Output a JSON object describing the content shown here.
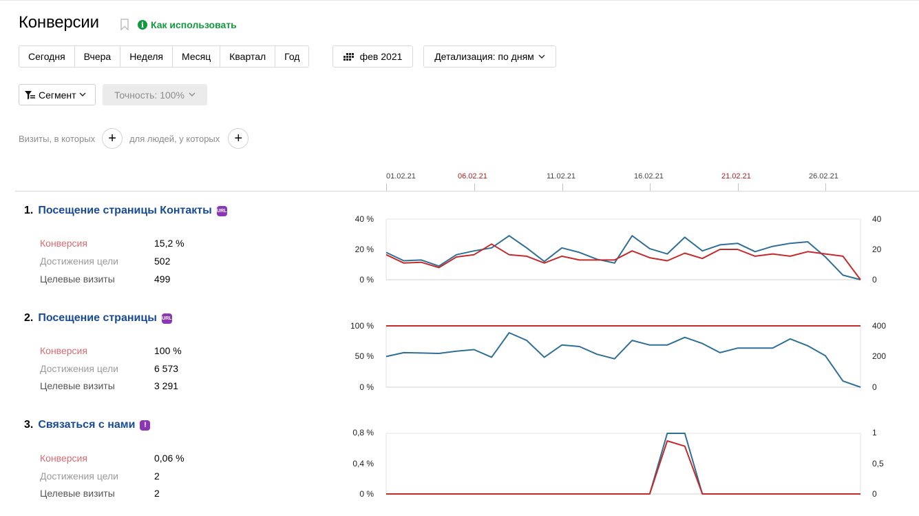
{
  "header": {
    "title": "Конверсии",
    "howto_label": "Как использовать"
  },
  "period_buttons": [
    "Сегодня",
    "Вчера",
    "Неделя",
    "Месяц",
    "Квартал",
    "Год"
  ],
  "date_button": {
    "label": "фев 2021"
  },
  "detail_button": {
    "label": "Детализация: по дням"
  },
  "segment_button": {
    "label": "Сегмент"
  },
  "accuracy_button": {
    "label": "Точность: 100%"
  },
  "segment_filter": {
    "visits_label": "Визиты, в которых",
    "people_label": "для людей, у которых"
  },
  "timeline": {
    "dates": [
      {
        "label": "01.02.21",
        "weekend": false
      },
      {
        "label": "06.02.21",
        "weekend": true
      },
      {
        "label": "11.02.21",
        "weekend": false
      },
      {
        "label": "16.02.21",
        "weekend": false
      },
      {
        "label": "21.02.21",
        "weekend": true
      },
      {
        "label": "26.02.21",
        "weekend": false
      }
    ]
  },
  "labels": {
    "conversion": "Конверсия",
    "achievements": "Достижения цели",
    "target_visits": "Целевые визиты"
  },
  "goals": [
    {
      "num": "1.",
      "name": "Посещение страницы Контакты",
      "badge": "URL",
      "conversion": "15,2 %",
      "achievements": "502",
      "target_visits": "499"
    },
    {
      "num": "2.",
      "name": "Посещение страницы",
      "badge": "URL",
      "conversion": "100 %",
      "achievements": "6 573",
      "target_visits": "3 291"
    },
    {
      "num": "3.",
      "name": "Связаться с нами",
      "badge": "!",
      "conversion": "0,06 %",
      "achievements": "2",
      "target_visits": "2"
    }
  ],
  "colors": {
    "conversion_line": "#c42a2a",
    "visits_line": "#2f6f95",
    "link": "#174a99",
    "accent_green": "#119a3d",
    "badge": "#8b36b5"
  },
  "chart_data": [
    {
      "type": "line",
      "x": [
        "01.02.21",
        "02.02.21",
        "03.02.21",
        "04.02.21",
        "05.02.21",
        "06.02.21",
        "07.02.21",
        "08.02.21",
        "09.02.21",
        "10.02.21",
        "11.02.21",
        "12.02.21",
        "13.02.21",
        "14.02.21",
        "15.02.21",
        "16.02.21",
        "17.02.21",
        "18.02.21",
        "19.02.21",
        "20.02.21",
        "21.02.21",
        "22.02.21",
        "23.02.21",
        "24.02.21",
        "25.02.21",
        "26.02.21",
        "27.02.21",
        "28.02.21"
      ],
      "y_left_ticks": [
        "0 %",
        "20 %",
        "40 %"
      ],
      "y_right_ticks": [
        "0",
        "20",
        "40"
      ],
      "ylim_left": [
        0,
        40
      ],
      "ylim_right": [
        0,
        40
      ],
      "series": [
        {
          "axis": "left",
          "color": "#c42a2a",
          "values": [
            16.5,
            11,
            11.5,
            8,
            15,
            16.5,
            23.5,
            16.5,
            15.5,
            11,
            15.5,
            13,
            13,
            13,
            19,
            14.5,
            12.5,
            17.5,
            14,
            20,
            20,
            15.5,
            17,
            15.5,
            18.5,
            17,
            15.5,
            0
          ]
        },
        {
          "axis": "right",
          "color": "#2f6f95",
          "values": [
            18,
            12.5,
            13,
            9,
            16.5,
            19,
            21,
            29,
            21,
            12,
            21,
            18,
            13.5,
            11,
            29,
            20.5,
            17,
            28,
            19,
            23,
            24,
            18.5,
            22,
            24,
            25,
            15,
            3,
            0
          ]
        }
      ]
    },
    {
      "type": "line",
      "x": [
        "01.02.21",
        "02.02.21",
        "03.02.21",
        "04.02.21",
        "05.02.21",
        "06.02.21",
        "07.02.21",
        "08.02.21",
        "09.02.21",
        "10.02.21",
        "11.02.21",
        "12.02.21",
        "13.02.21",
        "14.02.21",
        "15.02.21",
        "16.02.21",
        "17.02.21",
        "18.02.21",
        "19.02.21",
        "20.02.21",
        "21.02.21",
        "22.02.21",
        "23.02.21",
        "24.02.21",
        "25.02.21",
        "26.02.21",
        "27.02.21",
        "28.02.21"
      ],
      "y_left_ticks": [
        "0 %",
        "50 %",
        "100 %"
      ],
      "y_right_ticks": [
        "0",
        "200",
        "400"
      ],
      "ylim_left": [
        0,
        100
      ],
      "ylim_right": [
        0,
        400
      ],
      "series": [
        {
          "axis": "left",
          "color": "#c42a2a",
          "values": [
            100,
            100,
            100,
            100,
            100,
            100,
            100,
            100,
            100,
            100,
            100,
            100,
            100,
            100,
            100,
            100,
            100,
            100,
            100,
            100,
            100,
            100,
            100,
            100,
            100,
            100,
            100,
            100
          ]
        },
        {
          "axis": "right",
          "color": "#2f6f95",
          "values": [
            200,
            225,
            223,
            220,
            235,
            245,
            195,
            355,
            305,
            195,
            275,
            265,
            215,
            185,
            305,
            275,
            275,
            325,
            285,
            225,
            255,
            255,
            255,
            315,
            270,
            205,
            40,
            0
          ]
        }
      ]
    },
    {
      "type": "line",
      "x": [
        "01.02.21",
        "02.02.21",
        "03.02.21",
        "04.02.21",
        "05.02.21",
        "06.02.21",
        "07.02.21",
        "08.02.21",
        "09.02.21",
        "10.02.21",
        "11.02.21",
        "12.02.21",
        "13.02.21",
        "14.02.21",
        "15.02.21",
        "16.02.21",
        "17.02.21",
        "18.02.21",
        "19.02.21",
        "20.02.21",
        "21.02.21",
        "22.02.21",
        "23.02.21",
        "24.02.21",
        "25.02.21",
        "26.02.21",
        "27.02.21",
        "28.02.21"
      ],
      "y_left_ticks": [
        "0 %",
        "0,4 %",
        "0,8 %"
      ],
      "y_right_ticks": [
        "0",
        "0,5",
        "1"
      ],
      "ylim_left": [
        0,
        0.8
      ],
      "ylim_right": [
        0,
        1
      ],
      "series": [
        {
          "axis": "left",
          "color": "#c42a2a",
          "values": [
            0,
            0,
            0,
            0,
            0,
            0,
            0,
            0,
            0,
            0,
            0,
            0,
            0,
            0,
            0,
            0,
            0.7,
            0.63,
            0,
            0,
            0,
            0,
            0,
            0,
            0,
            0,
            0,
            0
          ]
        },
        {
          "axis": "right",
          "color": "#2f6f95",
          "values": [
            0,
            0,
            0,
            0,
            0,
            0,
            0,
            0,
            0,
            0,
            0,
            0,
            0,
            0,
            0,
            0,
            1,
            1,
            0,
            0,
            0,
            0,
            0,
            0,
            0,
            0,
            0,
            0
          ]
        }
      ]
    }
  ]
}
